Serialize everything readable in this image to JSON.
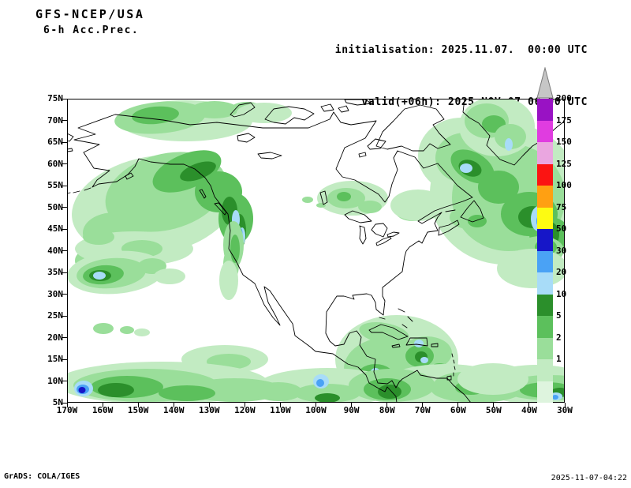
{
  "header": {
    "model_line": "GFS-NCEP/USA",
    "product_line": "6-h Acc.Prec.",
    "init_line": "initialisation: 2025.11.07.  00:00 UTC",
    "valid_line": "valid(+06h): 2025.NOV.07 06:00 UTC"
  },
  "footer": {
    "credit": "GrADS: COLA/IGES",
    "timestamp": "2025-11-07-04:22"
  },
  "axes": {
    "lat_labels": [
      "75N",
      "70N",
      "65N",
      "60N",
      "55N",
      "50N",
      "45N",
      "40N",
      "35N",
      "30N",
      "25N",
      "20N",
      "15N",
      "10N",
      "5N"
    ],
    "lon_labels": [
      "170W",
      "160W",
      "150W",
      "140W",
      "130W",
      "120W",
      "110W",
      "100W",
      "90W",
      "80W",
      "70W",
      "60W",
      "50W",
      "40W",
      "30W"
    ]
  },
  "colorbar": {
    "labels": [
      "200",
      "175",
      "150",
      "125",
      "100",
      "75",
      "50",
      "30",
      "20",
      "10",
      "5",
      "2",
      "1"
    ],
    "segment_colors_top_down": [
      "#9912c4",
      "#e03ce0",
      "#eaa6e0",
      "#fb1412",
      "#ffa012",
      "#fdfb12",
      "#1616c8",
      "#4aa2f5",
      "#a8dcf8",
      "#2b8f2b",
      "#5cc05c",
      "#9ade9a",
      "#c2ebc2",
      "#def4de"
    ],
    "arrow_color": "#c6c6c6",
    "arrow_edge": "#7a7a7a"
  },
  "map": {
    "palette": {
      "1": "#c2ebc2",
      "2": "#9ade9a",
      "3": "#5cc05c",
      "4": "#2b8f2b",
      "5": "#a8dcf8",
      "6": "#4aa2f5",
      "7": "#1616c8"
    },
    "precip_blobs": [
      [
        1,
        150,
        28,
        85,
        26,
        0
      ],
      [
        2,
        118,
        24,
        58,
        20,
        -5
      ],
      [
        3,
        112,
        21,
        30,
        11,
        -5
      ],
      [
        2,
        187,
        14,
        30,
        11,
        0
      ],
      [
        2,
        228,
        12,
        20,
        8,
        0
      ],
      [
        1,
        250,
        18,
        35,
        13,
        0
      ],
      [
        1,
        110,
        135,
        105,
        62,
        -10
      ],
      [
        2,
        125,
        118,
        78,
        48,
        -15
      ],
      [
        2,
        60,
        170,
        40,
        26,
        0
      ],
      [
        3,
        152,
        92,
        46,
        22,
        -22
      ],
      [
        3,
        192,
        118,
        30,
        26,
        0
      ],
      [
        3,
        214,
        152,
        22,
        32,
        0
      ],
      [
        4,
        166,
        92,
        24,
        10,
        -20
      ],
      [
        4,
        206,
        142,
        10,
        18,
        0
      ],
      [
        4,
        219,
        168,
        8,
        22,
        0
      ],
      [
        5,
        214,
        153,
        5,
        12,
        0
      ],
      [
        5,
        222,
        174,
        4,
        11,
        0
      ],
      [
        6,
        220,
        170,
        2.5,
        6,
        0
      ],
      [
        2,
        40,
        205,
        30,
        18,
        0
      ],
      [
        2,
        211,
        185,
        13,
        30,
        0
      ],
      [
        2,
        208,
        210,
        10,
        22,
        0
      ],
      [
        3,
        213,
        190,
        6,
        18,
        0
      ],
      [
        1,
        205,
        230,
        12,
        25,
        0
      ],
      [
        1,
        85,
        190,
        75,
        22,
        0
      ],
      [
        2,
        95,
        190,
        26,
        11,
        0
      ],
      [
        2,
        40,
        175,
        20,
        10,
        0
      ],
      [
        1,
        62,
        220,
        62,
        27,
        -5
      ],
      [
        2,
        56,
        221,
        44,
        19,
        -5
      ],
      [
        3,
        46,
        223,
        26,
        12,
        -5
      ],
      [
        4,
        42,
        224,
        14,
        7,
        0
      ],
      [
        5,
        41,
        224,
        8,
        5,
        0
      ],
      [
        2,
        108,
        212,
        18,
        10,
        0
      ],
      [
        1,
        130,
        225,
        20,
        10,
        0
      ],
      [
        2,
        46,
        291,
        13,
        7,
        0
      ],
      [
        2,
        76,
        293,
        9,
        5,
        0
      ],
      [
        1,
        95,
        296,
        10,
        5,
        0
      ],
      [
        1,
        362,
        126,
        45,
        22,
        0
      ],
      [
        2,
        354,
        126,
        24,
        13,
        0
      ],
      [
        3,
        351,
        124,
        9,
        6,
        0
      ],
      [
        2,
        384,
        137,
        15,
        8,
        0
      ],
      [
        2,
        438,
        142,
        22,
        13,
        0
      ],
      [
        1,
        445,
        135,
        35,
        20,
        0
      ],
      [
        2,
        305,
        128,
        7,
        4,
        0
      ],
      [
        2,
        322,
        135,
        6,
        3,
        0
      ],
      [
        1,
        555,
        120,
        95,
        90,
        0
      ],
      [
        1,
        500,
        72,
        55,
        48,
        0
      ],
      [
        2,
        560,
        125,
        72,
        68,
        0
      ],
      [
        2,
        505,
        75,
        38,
        32,
        0
      ],
      [
        3,
        514,
        86,
        30,
        18,
        30
      ],
      [
        3,
        547,
        112,
        26,
        21,
        0
      ],
      [
        3,
        586,
        146,
        36,
        28,
        0
      ],
      [
        3,
        612,
        172,
        26,
        22,
        0
      ],
      [
        4,
        511,
        88,
        15,
        10,
        20
      ],
      [
        4,
        590,
        150,
        18,
        14,
        0
      ],
      [
        4,
        612,
        172,
        12,
        16,
        0
      ],
      [
        5,
        506,
        88,
        8,
        6,
        0
      ],
      [
        5,
        598,
        152,
        10,
        16,
        0
      ],
      [
        6,
        600,
        155,
        5,
        8,
        0
      ],
      [
        2,
        600,
        192,
        30,
        18,
        0
      ],
      [
        3,
        607,
        188,
        14,
        10,
        0
      ],
      [
        1,
        590,
        215,
        45,
        25,
        0
      ],
      [
        2,
        510,
        150,
        25,
        15,
        0
      ],
      [
        3,
        520,
        155,
        12,
        8,
        0
      ],
      [
        1,
        545,
        35,
        48,
        38,
        0
      ],
      [
        2,
        532,
        28,
        28,
        22,
        0
      ],
      [
        3,
        541,
        32,
        15,
        11,
        0
      ],
      [
        2,
        562,
        48,
        20,
        16,
        0
      ],
      [
        5,
        560,
        58,
        5,
        8,
        0
      ],
      [
        1,
        418,
        330,
        78,
        56,
        0
      ],
      [
        2,
        407,
        342,
        56,
        40,
        0
      ],
      [
        2,
        456,
        322,
        32,
        21,
        0
      ],
      [
        2,
        402,
        297,
        32,
        13,
        10
      ],
      [
        3,
        391,
        356,
        26,
        20,
        0
      ],
      [
        3,
        447,
        326,
        18,
        14,
        0
      ],
      [
        3,
        472,
        347,
        15,
        12,
        0
      ],
      [
        4,
        389,
        361,
        13,
        10,
        0
      ],
      [
        4,
        449,
        327,
        8,
        7,
        0
      ],
      [
        5,
        391,
        346,
        6,
        5,
        0
      ],
      [
        5,
        453,
        331,
        5,
        4,
        0
      ],
      [
        5,
        446,
        310,
        6,
        5,
        0
      ],
      [
        2,
        480,
        370,
        25,
        15,
        0
      ],
      [
        1,
        200,
        330,
        55,
        18,
        0
      ],
      [
        2,
        205,
        333,
        28,
        10,
        0
      ],
      [
        1,
        120,
        360,
        135,
        27,
        0
      ],
      [
        1,
        330,
        365,
        90,
        24,
        0
      ],
      [
        1,
        480,
        362,
        80,
        26,
        0
      ],
      [
        1,
        595,
        362,
        70,
        25,
        0
      ],
      [
        2,
        100,
        363,
        92,
        21,
        0
      ],
      [
        2,
        212,
        369,
        62,
        15,
        0
      ],
      [
        2,
        330,
        373,
        42,
        12,
        0
      ],
      [
        2,
        412,
        363,
        55,
        21,
        0
      ],
      [
        2,
        520,
        369,
        58,
        16,
        0
      ],
      [
        2,
        612,
        366,
        62,
        16,
        0
      ],
      [
        3,
        76,
        365,
        46,
        14,
        0
      ],
      [
        3,
        152,
        373,
        36,
        10,
        0
      ],
      [
        3,
        406,
        368,
        30,
        14,
        0
      ],
      [
        3,
        608,
        369,
        34,
        10,
        0
      ],
      [
        3,
        268,
        372,
        20,
        8,
        0
      ],
      [
        2,
        268,
        371,
        30,
        12,
        0
      ],
      [
        4,
        62,
        369,
        23,
        9,
        0
      ],
      [
        4,
        330,
        379,
        16,
        6,
        0
      ],
      [
        4,
        409,
        371,
        15,
        9,
        0
      ],
      [
        4,
        625,
        372,
        12,
        6,
        0
      ],
      [
        5,
        322,
        358,
        10,
        9,
        0
      ],
      [
        6,
        321,
        360,
        5,
        5,
        0
      ],
      [
        5,
        21,
        367,
        12,
        10,
        0
      ],
      [
        6,
        20,
        368,
        8,
        6,
        0
      ],
      [
        7,
        19,
        369,
        4.5,
        4,
        0
      ],
      [
        5,
        620,
        377,
        8,
        5,
        0
      ],
      [
        6,
        619,
        378,
        4,
        3,
        0
      ],
      [
        2,
        505,
        362,
        40,
        16,
        0
      ],
      [
        3,
        512,
        366,
        20,
        9,
        0
      ],
      [
        1,
        540,
        355,
        45,
        20,
        0
      ]
    ]
  }
}
